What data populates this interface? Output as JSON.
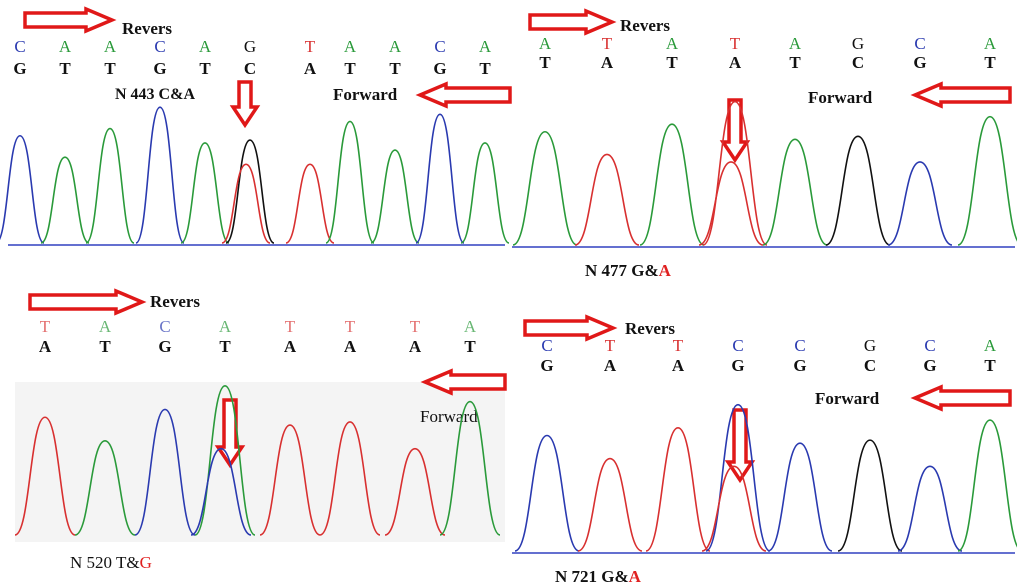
{
  "panels": [
    {
      "reverse_label": "Revers",
      "forward_label": "Forward",
      "reverse_bases": [
        "C",
        "A",
        "A",
        "C",
        "A",
        "G",
        "T",
        "A",
        "A",
        "C",
        "A"
      ],
      "forward_bases": [
        "G",
        "T",
        "T",
        "G",
        "T",
        "C",
        "A",
        "T",
        "T",
        "G",
        "T"
      ],
      "mutation": {
        "prefix": "N 443 C&",
        "variant": "A",
        "variant_color": "#111111"
      }
    },
    {
      "reverse_label": "Revers",
      "forward_label": "Forward",
      "reverse_bases": [
        "A",
        "T",
        "A",
        "T",
        "A",
        "G",
        "C",
        "A"
      ],
      "forward_bases": [
        "T",
        "A",
        "T",
        "A",
        "T",
        "C",
        "G",
        "T"
      ],
      "mutation": {
        "prefix": "N 477 G&",
        "variant": "A",
        "variant_color": "#e02020"
      }
    },
    {
      "reverse_label": "Revers",
      "forward_label": "Forward",
      "reverse_bases": [
        "T",
        "A",
        "C",
        "A",
        "T",
        "T",
        "T",
        "A"
      ],
      "forward_bases": [
        "A",
        "T",
        "G",
        "T",
        "A",
        "A",
        "A",
        "T"
      ],
      "mutation": {
        "prefix": "N 520 T&",
        "variant": "G",
        "variant_color": "#e02020"
      }
    },
    {
      "reverse_label": "Revers",
      "forward_label": "Forward",
      "reverse_bases": [
        "C",
        "T",
        "T",
        "C",
        "C",
        "G",
        "C",
        "A"
      ],
      "forward_bases": [
        "G",
        "A",
        "A",
        "G",
        "G",
        "C",
        "G",
        "T"
      ],
      "mutation": {
        "prefix": "N 721 G&",
        "variant": "A",
        "variant_color": "#e02020"
      }
    }
  ]
}
